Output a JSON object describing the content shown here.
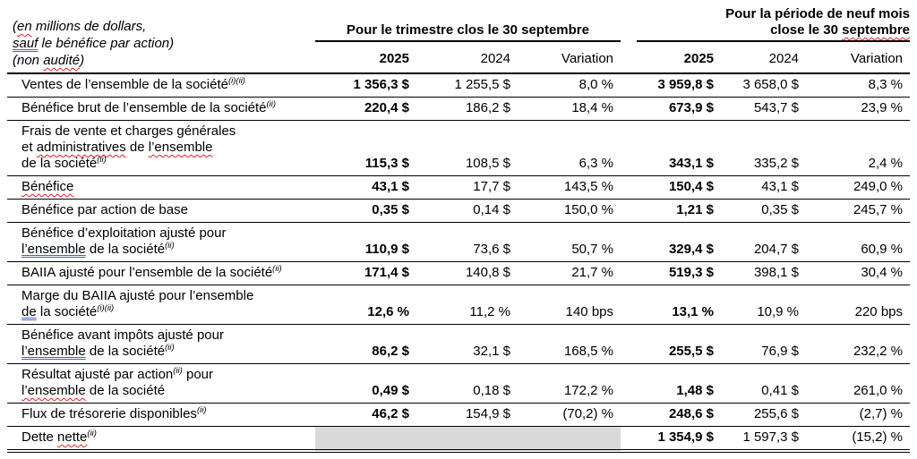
{
  "colors": {
    "squiggle_red": "#e0201c",
    "grammar_blue": "#3a66c8",
    "shaded_cell": "#d9d9d9",
    "text": "#000000",
    "background": "#ffffff"
  },
  "header": {
    "note_lines": [
      [
        {
          "t": "("
        },
        {
          "t": "en",
          "mark": "red"
        },
        {
          "t": " millions de dollars,"
        }
      ],
      [
        {
          "t": "sauf",
          "mark": "blue"
        },
        {
          "t": " le bénéfice par action)"
        }
      ],
      [
        {
          "t": "(non "
        },
        {
          "t": "audité",
          "mark": "red"
        },
        {
          "t": ")"
        }
      ]
    ],
    "group1_lines": [
      [
        {
          "t": "Pour le trimestre clos le 30 septembre"
        }
      ]
    ],
    "group2_lines": [
      [
        {
          "t": "Pour la période de neuf mois"
        }
      ],
      [
        {
          "t": "close le 30 "
        },
        {
          "t": "septembre",
          "mark": "red"
        }
      ]
    ],
    "year_columns": [
      {
        "label": "2025",
        "bold": true
      },
      {
        "label": "2024",
        "bold": false
      },
      {
        "label": "Variation",
        "bold": false
      },
      {
        "label": "2025",
        "bold": true
      },
      {
        "label": "2024",
        "bold": false
      },
      {
        "label": "Variation",
        "bold": false
      }
    ]
  },
  "table": {
    "bold_value_columns": [
      0,
      3
    ],
    "rows": [
      {
        "label_lines": [
          [
            {
              "t": "Ventes de l’ensemble de la société"
            },
            {
              "t": "(i)(ii)",
              "sup": true
            }
          ]
        ],
        "values": [
          "1 356,3 $",
          "1 255,5 $",
          "8,0 %",
          "3 959,8 $",
          "3 658,0 $",
          "8,3 %"
        ],
        "shaded_cols": []
      },
      {
        "label_lines": [
          [
            {
              "t": "Bénéfice brut de l’ensemble de la société"
            },
            {
              "t": "(ii)",
              "sup": true
            }
          ]
        ],
        "values": [
          "220,4 $",
          "186,2 $",
          "18,4 %",
          "673,9 $",
          "543,7 $",
          "23,9 %"
        ],
        "shaded_cols": []
      },
      {
        "label_lines": [
          [
            {
              "t": "Frais de vente et charges générales"
            }
          ],
          [
            {
              "t": "et "
            },
            {
              "t": "administratives",
              "mark": "red"
            },
            {
              "t": " de "
            },
            {
              "t": "l’ensemble",
              "mark": "red"
            }
          ],
          [
            {
              "t": "de la société"
            },
            {
              "t": "(ii)",
              "sup": true
            }
          ]
        ],
        "values": [
          "115,3 $",
          "108,5 $",
          "6,3 %",
          "343,1 $",
          "335,2 $",
          "2,4 %"
        ],
        "shaded_cols": []
      },
      {
        "label_lines": [
          [
            {
              "t": "Bénéfice",
              "mark": "red"
            }
          ]
        ],
        "values": [
          "43,1 $",
          "17,7 $",
          "143,5 %",
          "150,4 $",
          "43,1 $",
          "249,0 %"
        ],
        "shaded_cols": []
      },
      {
        "label_lines": [
          [
            {
              "t": "Bénéfice par action de base"
            }
          ]
        ],
        "values": [
          "0,35 $",
          "0,14 $",
          "150,0 %",
          "1,21 $",
          "0,35 $",
          "245,7 %"
        ],
        "shaded_cols": []
      },
      {
        "label_lines": [
          [
            {
              "t": "Bénéfice d’exploitation ajusté pour"
            }
          ],
          [
            {
              "t": "l’ensemble",
              "mark": "blue"
            },
            {
              "t": " de la société"
            },
            {
              "t": "(ii)",
              "sup": true
            }
          ]
        ],
        "values": [
          "110,9 $",
          "73,6 $",
          "50,7 %",
          "329,4 $",
          "204,7 $",
          "60,9 %"
        ],
        "shaded_cols": []
      },
      {
        "label_lines": [
          [
            {
              "t": "BAIIA ajusté pour l’ensemble de la société"
            },
            {
              "t": "(ii)",
              "sup": true
            }
          ]
        ],
        "values": [
          "171,4 $",
          "140,8 $",
          "21,7 %",
          "519,3 $",
          "398,1 $",
          "30,4 %"
        ],
        "shaded_cols": []
      },
      {
        "label_lines": [
          [
            {
              "t": "Marge du BAIIA ajusté pour l’ensemble"
            }
          ],
          [
            {
              "t": "de",
              "mark": "blue"
            },
            {
              "t": " la société"
            },
            {
              "t": "(i)(ii)",
              "sup": true
            }
          ]
        ],
        "values": [
          "12,6 %",
          "11,2 %",
          "140 bps",
          "13,1 %",
          "10,9 %",
          "220 bps"
        ],
        "shaded_cols": []
      },
      {
        "label_lines": [
          [
            {
              "t": "Bénéfice avant impôts ajusté pour"
            }
          ],
          [
            {
              "t": "l’ensemble",
              "mark": "blue"
            },
            {
              "t": " de la société"
            },
            {
              "t": "(ii)",
              "sup": true
            }
          ]
        ],
        "values": [
          "86,2 $",
          "32,1 $",
          "168,5 %",
          "255,5 $",
          "76,9 $",
          "232,2 %"
        ],
        "shaded_cols": []
      },
      {
        "label_lines": [
          [
            {
              "t": "Résultat ajusté par action"
            },
            {
              "t": "(ii)",
              "sup": true
            },
            {
              "t": " pour"
            }
          ],
          [
            {
              "t": "l’ensemble",
              "mark": "red"
            },
            {
              "t": " de la société"
            }
          ]
        ],
        "values": [
          "0,49 $",
          "0,18 $",
          "172,2 %",
          "1,48 $",
          "0,41 $",
          "261,0 %"
        ],
        "shaded_cols": []
      },
      {
        "label_lines": [
          [
            {
              "t": "Flux de trésorerie disponibles"
            },
            {
              "t": "(ii)",
              "sup": true
            }
          ]
        ],
        "values": [
          "46,2 $",
          "154,9 $",
          "(70,2) %",
          "248,6 $",
          "255,6 $",
          "(2,7) %"
        ],
        "shaded_cols": []
      },
      {
        "label_lines": [
          [
            {
              "t": "Dette "
            },
            {
              "t": "nette",
              "mark": "red"
            },
            {
              "t": "(ii)",
              "sup": true
            }
          ]
        ],
        "values": [
          null,
          null,
          null,
          "1 354,9 $",
          "1 597,3 $",
          "(15,2) %"
        ],
        "shaded_cols": [
          0,
          1,
          2
        ]
      }
    ]
  }
}
